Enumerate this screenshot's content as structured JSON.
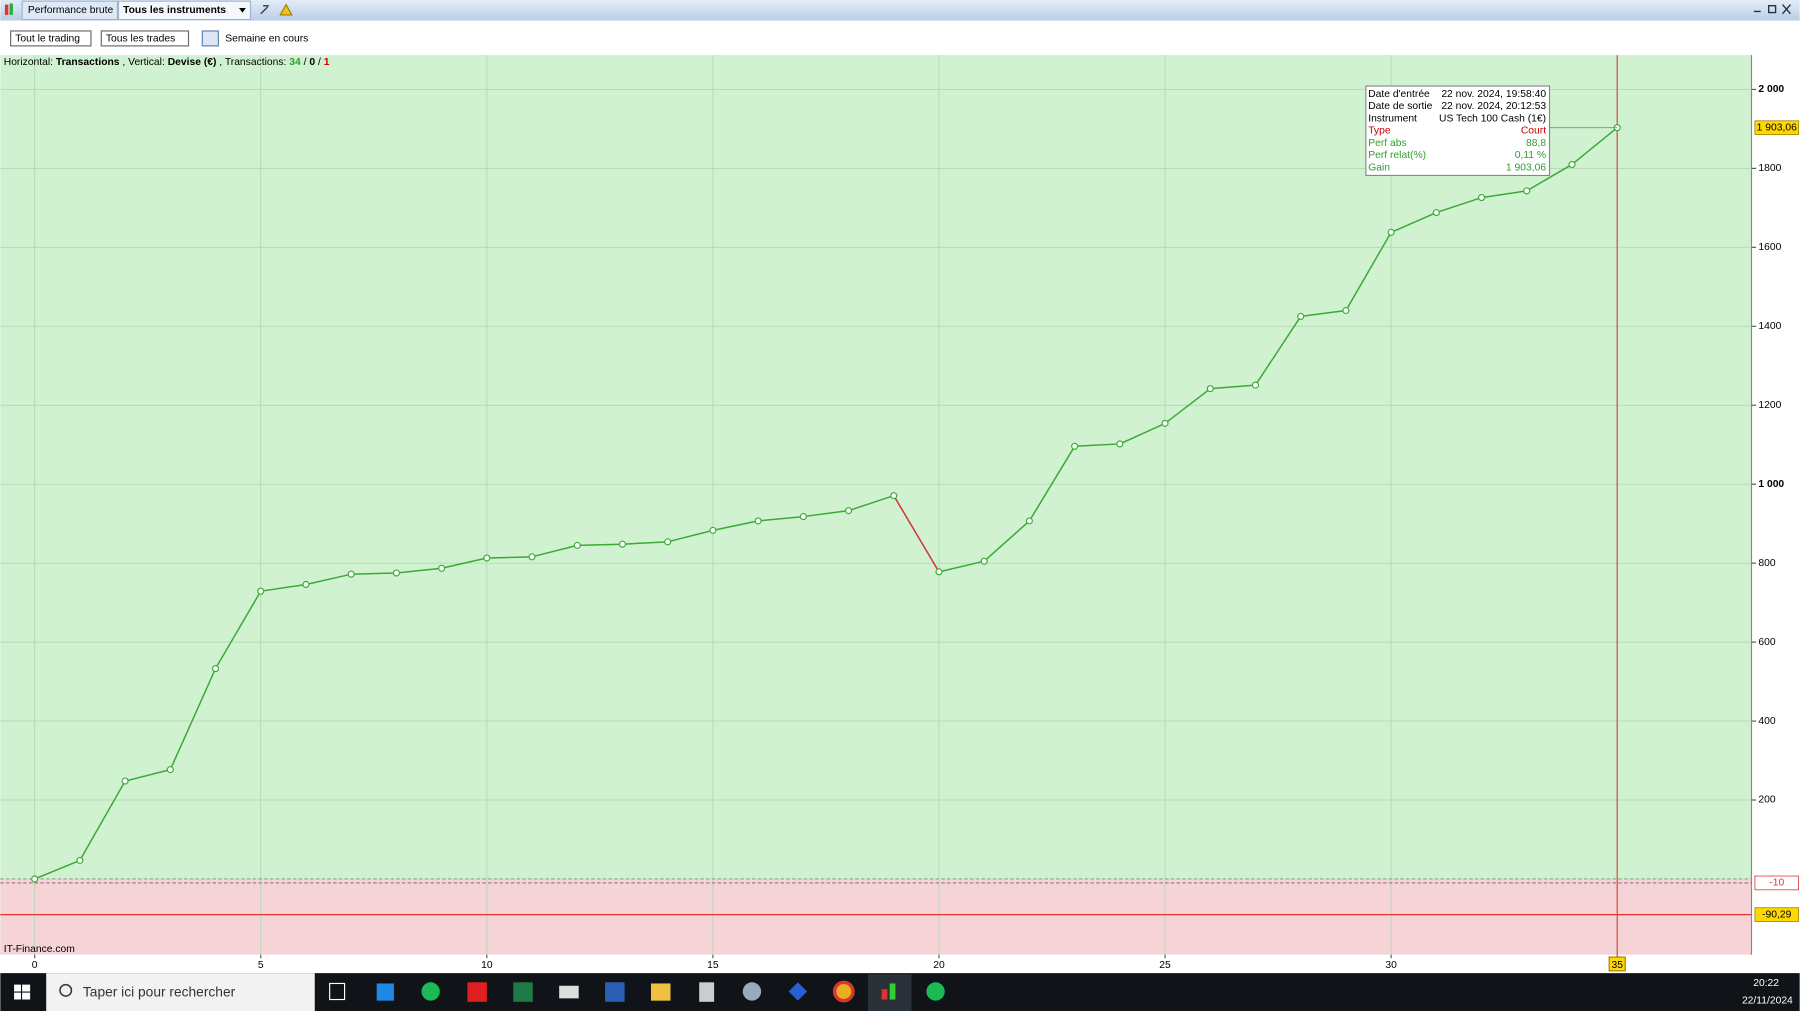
{
  "window": {
    "title_tab": "Performance brute",
    "instrument_tab": "Tous les instruments"
  },
  "toolbar": {
    "trading_filter": "Tout le trading",
    "trades_filter": "Tous les trades",
    "period": "Semaine en cours"
  },
  "chart_data": {
    "type": "line",
    "header_parts": [
      {
        "text": "Horizontal:",
        "bold": false,
        "color": "#000000"
      },
      {
        "text": "Transactions",
        "bold": true,
        "color": "#000000"
      },
      {
        "text": ", Vertical:",
        "bold": false,
        "color": "#000000"
      },
      {
        "text": "Devise (€)",
        "bold": true,
        "color": "#000000"
      },
      {
        "text": ", Transactions:",
        "bold": false,
        "color": "#000000"
      },
      {
        "text": "34",
        "bold": true,
        "color": "#2e9e2e"
      },
      {
        "text": "/",
        "bold": false,
        "color": "#000000"
      },
      {
        "text": "0",
        "bold": true,
        "color": "#000000"
      },
      {
        "text": "/",
        "bold": false,
        "color": "#000000"
      },
      {
        "text": "1",
        "bold": true,
        "color": "#cc0000"
      }
    ],
    "x": [
      0,
      1,
      2,
      3,
      4,
      5,
      6,
      7,
      8,
      9,
      10,
      11,
      12,
      13,
      14,
      15,
      16,
      17,
      18,
      19,
      20,
      21,
      22,
      23,
      24,
      25,
      26,
      27,
      28,
      29,
      30,
      31,
      32,
      33,
      34,
      35
    ],
    "values": [
      0,
      47,
      248,
      277,
      533,
      729,
      746,
      772,
      775,
      787,
      813,
      816,
      845,
      848,
      854,
      883,
      907,
      918,
      933,
      971,
      778,
      805,
      907,
      1096,
      1102,
      1154,
      1242,
      1251,
      1425,
      1440,
      1638,
      1688,
      1726,
      1743,
      1810,
      1903.06
    ],
    "up_color": "#3aaa35",
    "down_color": "#cc3333",
    "xlim": [
      -0.76,
      37.97
    ],
    "xticks": [
      0,
      5,
      10,
      15,
      20,
      25,
      30,
      35
    ],
    "ylim": [
      -192,
      2087
    ],
    "yticks": [
      200,
      400,
      600,
      800,
      {
        "value": 1000,
        "label": "1 000"
      },
      1200,
      1400,
      1600,
      1800,
      {
        "value": 2000,
        "label": "2 000"
      }
    ],
    "grid": true,
    "crosshair_x": 35,
    "markers": [
      {
        "value": 1903.06,
        "label": "1 903,06",
        "background": "#ffd800",
        "line": "none"
      },
      {
        "value": -10,
        "label": "-10",
        "background": "#ffffff",
        "line": "dashed"
      },
      {
        "value": -90.29,
        "label": "-90,29",
        "background": "#ffd800",
        "line": "solid"
      }
    ],
    "watermark": "IT-Finance.com",
    "tooltip": [
      {
        "label": "Date d'entrée",
        "value": "22 nov. 2024, 19:58:40",
        "color": "#000000"
      },
      {
        "label": "Date de sortie",
        "value": "22 nov. 2024, 20:12:53",
        "color": "#000000"
      },
      {
        "label": "Instrument",
        "value": "US Tech 100 Cash (1€)",
        "color": "#000000"
      },
      {
        "label": "Type",
        "value": "Court",
        "color": "#cc0000"
      },
      {
        "label": "Perf abs",
        "value": "88,8",
        "color": "#2e9e2e"
      },
      {
        "label": "Perf relat(%)",
        "value": "0,11 %",
        "color": "#2e9e2e"
      },
      {
        "label": "Gain",
        "value": "1 903,06",
        "color": "#2e9e2e"
      }
    ]
  },
  "taskbar": {
    "search": "Taper ici pour rechercher",
    "time": "20:22",
    "date": "22/11/2024"
  }
}
